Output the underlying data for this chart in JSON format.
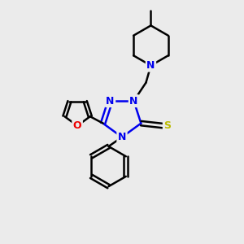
{
  "bg_color": "#ebebeb",
  "atom_colors": {
    "C": "#000000",
    "N": "#0000ee",
    "O": "#ee0000",
    "S": "#bbbb00"
  },
  "bond_color": "#000000",
  "bond_width": 1.8,
  "figsize": [
    3.0,
    3.0
  ],
  "dpi": 100,
  "xlim": [
    0,
    10
  ],
  "ylim": [
    0,
    10
  ]
}
